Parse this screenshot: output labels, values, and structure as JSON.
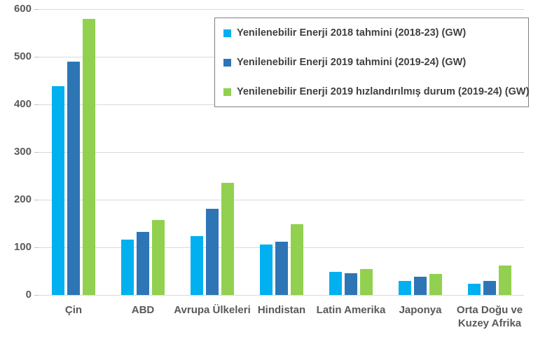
{
  "chart_data": {
    "type": "bar",
    "title": "",
    "xlabel": "",
    "ylabel": "",
    "categories": [
      "Çin",
      "ABD",
      "Avrupa Ülkeleri",
      "Hindistan",
      "Latin Amerika",
      "Japonya",
      "Orta Doğu ve Kuzey Afrika"
    ],
    "series": [
      {
        "name": "Yenilenebilir Enerji 2018 tahmini (2018-23) (GW)",
        "color": "#00B0F0",
        "values": [
          438,
          116,
          124,
          106,
          49,
          29,
          23
        ]
      },
      {
        "name": "Yenilenebilir Enerji 2019 tahmini (2019-24) (GW)",
        "color": "#2E75B6",
        "values": [
          490,
          132,
          181,
          112,
          46,
          38,
          29
        ]
      },
      {
        "name": "Yenilenebilir Enerji 2019 hızlandırılmış durum (2019-24) (GW)",
        "color": "#92D050",
        "values": [
          580,
          157,
          236,
          148,
          55,
          44,
          62
        ]
      }
    ],
    "ylim": [
      0,
      600
    ],
    "yticks": [
      0,
      100,
      200,
      300,
      400,
      500,
      600
    ],
    "grid": true,
    "legend_position": "top-right",
    "colors": {
      "gridline": "#D9D9D9",
      "tick": "#BFBFBF",
      "axis_label": "#595959",
      "legend_text": "#404040",
      "legend_border": "#7F7F7F",
      "background": "#FFFFFF"
    }
  }
}
